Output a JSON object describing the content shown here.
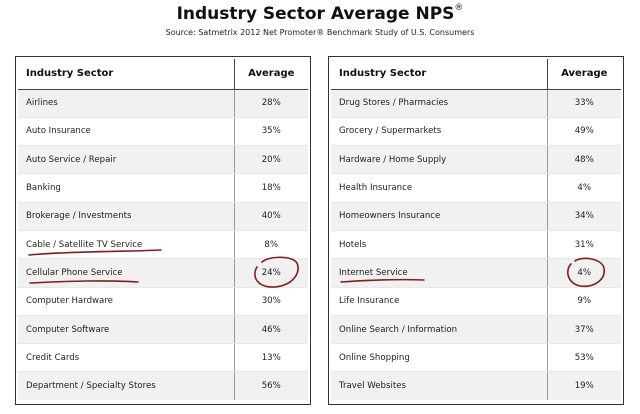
{
  "title": "Industry Sector Average NPS",
  "title_mark": "®",
  "subtitle": "Source: Satmetrix 2012 Net Promoter® Benchmark Study of U.S. Consumers",
  "headers": {
    "sector": "Industry Sector",
    "average": "Average"
  },
  "left_table": [
    {
      "sector": "Airlines",
      "average": "28%"
    },
    {
      "sector": "Auto Insurance",
      "average": "35%"
    },
    {
      "sector": "Auto Service / Repair",
      "average": "20%"
    },
    {
      "sector": "Banking",
      "average": "18%"
    },
    {
      "sector": "Brokerage / Investments",
      "average": "40%"
    },
    {
      "sector": "Cable / Satellite TV Service",
      "average": "8%"
    },
    {
      "sector": "Cellular Phone Service",
      "average": "24%"
    },
    {
      "sector": "Computer Hardware",
      "average": "30%"
    },
    {
      "sector": "Computer Software",
      "average": "46%"
    },
    {
      "sector": "Credit Cards",
      "average": "13%"
    },
    {
      "sector": "Department / Specialty Stores",
      "average": "56%"
    }
  ],
  "right_table": [
    {
      "sector": "Drug Stores / Pharmacies",
      "average": "33%"
    },
    {
      "sector": "Grocery / Supermarkets",
      "average": "49%"
    },
    {
      "sector": "Hardware / Home Supply",
      "average": "48%"
    },
    {
      "sector": "Health Insurance",
      "average": "4%"
    },
    {
      "sector": "Homeowners Insurance",
      "average": "34%"
    },
    {
      "sector": "Hotels",
      "average": "31%"
    },
    {
      "sector": "Internet Service",
      "average": "4%"
    },
    {
      "sector": "Life Insurance",
      "average": "9%"
    },
    {
      "sector": "Online Search / Information",
      "average": "37%"
    },
    {
      "sector": "Online Shopping",
      "average": "53%"
    },
    {
      "sector": "Travel Websites",
      "average": "19%"
    }
  ],
  "annotation_color": "#8b1a1a"
}
